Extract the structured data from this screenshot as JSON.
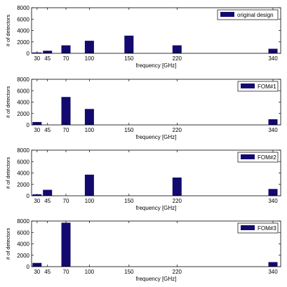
{
  "chart_data": [
    {
      "type": "bar",
      "legend": "original design",
      "legend_position": "top-right",
      "xlabel": "frequency [GHz]",
      "ylabel": "# of detectors",
      "categories": [
        "30",
        "45",
        "70",
        "100",
        "150",
        "220",
        "340"
      ],
      "values": [
        150,
        450,
        1400,
        2200,
        3100,
        1400,
        800
      ],
      "ylim": [
        0,
        8000
      ],
      "yticks": [
        "0",
        "2000",
        "4000",
        "6000",
        "8000"
      ],
      "grid": false
    },
    {
      "type": "bar",
      "legend": "FOM#1",
      "legend_position": "top-right",
      "xlabel": "frequency [GHz]",
      "ylabel": "# of detectors",
      "categories": [
        "30",
        "45",
        "70",
        "100",
        "150",
        "220",
        "340"
      ],
      "values": [
        500,
        0,
        4900,
        2800,
        0,
        0,
        1000
      ],
      "ylim": [
        0,
        8000
      ],
      "yticks": [
        "0",
        "2000",
        "4000",
        "6000",
        "8000"
      ],
      "grid": false
    },
    {
      "type": "bar",
      "legend": "FOM#2",
      "legend_position": "top-right",
      "xlabel": "frequency [GHz]",
      "ylabel": "# of detectors",
      "categories": [
        "30",
        "45",
        "70",
        "100",
        "150",
        "220",
        "340"
      ],
      "values": [
        250,
        1050,
        0,
        3700,
        0,
        3200,
        1200
      ],
      "ylim": [
        0,
        8000
      ],
      "yticks": [
        "0",
        "2000",
        "4000",
        "6000",
        "8000"
      ],
      "grid": false
    },
    {
      "type": "bar",
      "legend": "FOM#3",
      "legend_position": "top-right",
      "xlabel": "frequency [GHz]",
      "ylabel": "# of detectors",
      "categories": [
        "30",
        "45",
        "70",
        "100",
        "150",
        "220",
        "340"
      ],
      "values": [
        650,
        0,
        7700,
        0,
        0,
        0,
        800
      ],
      "ylim": [
        0,
        8000
      ],
      "yticks": [
        "0",
        "2000",
        "4000",
        "6000",
        "8000"
      ],
      "grid": false
    }
  ],
  "style": {
    "bar_color": "#120a6e",
    "axis_color": "#000000"
  }
}
